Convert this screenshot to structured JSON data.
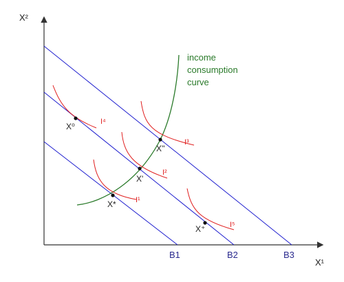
{
  "axes": {
    "y_label": "X²",
    "x_label": "X¹"
  },
  "curve_label": {
    "line1": "income",
    "line2": "consumption",
    "line3": "curve"
  },
  "budget_lines": [
    "B1",
    "B2",
    "B3"
  ],
  "points": {
    "x0": "X⁰",
    "xstar": "X*",
    "xprime": "X'",
    "xdouble": "X''",
    "xplus": "X⁺"
  },
  "indifference_labels": {
    "i1": "I¹",
    "i2": "I²",
    "i3": "I³",
    "i4": "I⁴",
    "i5": "I⁵"
  },
  "colors": {
    "axis": "#333333",
    "budget": "#1f1fcf",
    "budget_label": "#2b2b8f",
    "indifference": "#e02020",
    "icc": "#2a7a2a",
    "point": "#111111",
    "text": "#222222"
  }
}
